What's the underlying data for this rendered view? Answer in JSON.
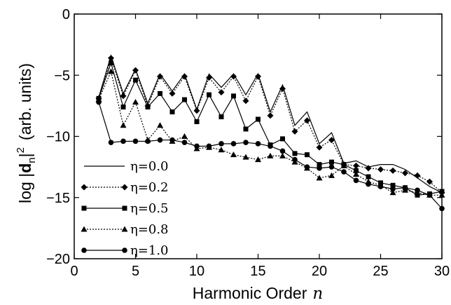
{
  "chart_data": {
    "type": "line",
    "xlabel": "Harmonic Order",
    "xlabel_var": "n",
    "ylabel_prefix": "log |",
    "ylabel_sym": "d",
    "ylabel_sub": "n",
    "ylabel_sup": "2",
    "ylabel_suffix": "(arb. units)",
    "xlim": [
      0,
      30
    ],
    "ylim": [
      -20,
      0
    ],
    "xticks": [
      0,
      5,
      10,
      15,
      20,
      25,
      30
    ],
    "yticks": [
      0,
      -5,
      -10,
      -15,
      -20
    ],
    "legend_position": "bottom-left",
    "grid": false,
    "series": [
      {
        "name": "η=0.0",
        "line": "solid",
        "marker": "none",
        "x": [
          2,
          3,
          4,
          5,
          6,
          7,
          8,
          9,
          10,
          11,
          12,
          13,
          14,
          15,
          16,
          17,
          18,
          19,
          20,
          21,
          22,
          23,
          24,
          25,
          26,
          27,
          28,
          29,
          30
        ],
        "y": [
          -6.8,
          -3.4,
          -6.5,
          -4.5,
          -7.3,
          -4.9,
          -6.3,
          -4.9,
          -7.8,
          -4.9,
          -6.0,
          -4.9,
          -6.6,
          -4.9,
          -8.0,
          -5.8,
          -9.1,
          -8.0,
          -10.6,
          -9.7,
          -12.2,
          -12.0,
          -12.5,
          -12.3,
          -12.3,
          -12.7,
          -13.4,
          -14.1,
          -14.6
        ]
      },
      {
        "name": "η=0.2",
        "line": "dotted",
        "marker": "diamond",
        "x": [
          2,
          3,
          4,
          5,
          6,
          7,
          8,
          9,
          10,
          11,
          12,
          13,
          14,
          15,
          16,
          17,
          18,
          19,
          20,
          21,
          22,
          23,
          24,
          25,
          26,
          27,
          28,
          29,
          30
        ],
        "y": [
          -6.9,
          -3.6,
          -6.7,
          -4.6,
          -7.5,
          -5.1,
          -6.5,
          -5.1,
          -7.9,
          -5.2,
          -6.4,
          -5.1,
          -7.1,
          -5.1,
          -8.3,
          -6.1,
          -9.6,
          -8.7,
          -10.9,
          -10.3,
          -12.3,
          -12.4,
          -12.6,
          -12.7,
          -12.8,
          -13.0,
          -13.2,
          -13.7,
          -14.6
        ]
      },
      {
        "name": "η=0.5",
        "line": "solid",
        "marker": "square",
        "x": [
          2,
          3,
          4,
          5,
          6,
          7,
          8,
          9,
          10,
          11,
          12,
          13,
          14,
          15,
          16,
          17,
          18,
          19,
          20,
          21,
          22,
          23,
          24,
          25,
          26,
          27,
          28,
          29,
          30
        ],
        "y": [
          -6.9,
          -4.0,
          -7.6,
          -5.4,
          -7.6,
          -6.5,
          -8.0,
          -7.0,
          -8.8,
          -6.6,
          -8.4,
          -6.7,
          -9.4,
          -8.6,
          -10.7,
          -10.2,
          -11.4,
          -11.5,
          -12.3,
          -12.1,
          -12.3,
          -12.8,
          -13.3,
          -13.8,
          -14.0,
          -14.2,
          -14.8,
          -14.7,
          -14.5
        ]
      },
      {
        "name": "η=0.8",
        "line": "dotted",
        "marker": "triangle",
        "x": [
          2,
          3,
          4,
          5,
          6,
          7,
          8,
          9,
          10,
          11,
          12,
          13,
          14,
          15,
          16,
          17,
          18,
          19,
          20,
          21,
          22,
          23,
          24,
          25,
          26,
          27,
          28,
          29,
          30
        ],
        "y": [
          -7.0,
          -4.7,
          -9.1,
          -7.2,
          -10.3,
          -9.1,
          -10.4,
          -10.0,
          -11.0,
          -10.9,
          -11.1,
          -11.5,
          -11.7,
          -11.9,
          -11.6,
          -11.6,
          -12.1,
          -12.6,
          -13.4,
          -13.2,
          -12.4,
          -13.1,
          -13.7,
          -14.0,
          -14.6,
          -14.4,
          -14.6,
          -14.8,
          -14.8
        ]
      },
      {
        "name": "η=1.0",
        "line": "solid",
        "marker": "circle",
        "x": [
          2,
          3,
          4,
          5,
          6,
          7,
          8,
          9,
          10,
          11,
          12,
          13,
          14,
          15,
          16,
          17,
          18,
          19,
          20,
          21,
          22,
          23,
          24,
          25,
          26,
          27,
          28,
          29,
          30
        ],
        "y": [
          -7.2,
          -10.5,
          -10.4,
          -10.4,
          -10.4,
          -10.3,
          -10.3,
          -10.5,
          -10.8,
          -10.8,
          -10.6,
          -10.6,
          -10.5,
          -10.6,
          -10.8,
          -11.2,
          -11.9,
          -12.5,
          -12.6,
          -12.5,
          -12.9,
          -13.6,
          -13.9,
          -14.1,
          -14.3,
          -14.2,
          -14.4,
          -14.8,
          -15.9
        ]
      }
    ]
  }
}
